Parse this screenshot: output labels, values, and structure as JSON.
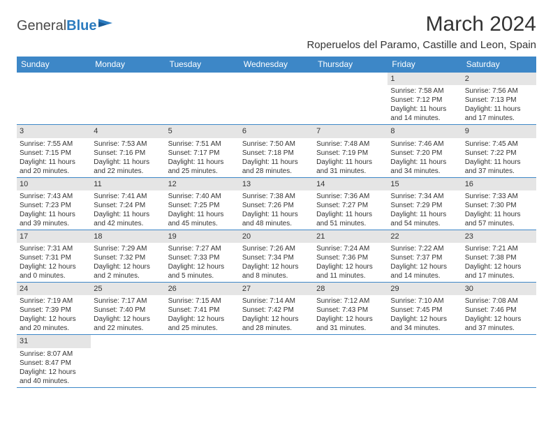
{
  "logo": {
    "text1": "General",
    "text2": "Blue"
  },
  "title": "March 2024",
  "location": "Roperuelos del Paramo, Castille and Leon, Spain",
  "colors": {
    "header_bg": "#3d87c7",
    "header_text": "#ffffff",
    "daynum_bg": "#e5e5e5",
    "border": "#3d87c7",
    "text": "#333333",
    "logo_blue": "#2b7bbf"
  },
  "typography": {
    "title_fontsize": 30,
    "location_fontsize": 15,
    "header_fontsize": 12,
    "cell_fontsize": 10,
    "daynum_fontsize": 11
  },
  "dayHeaders": [
    "Sunday",
    "Monday",
    "Tuesday",
    "Wednesday",
    "Thursday",
    "Friday",
    "Saturday"
  ],
  "weeks": [
    [
      {
        "n": "",
        "sr": "",
        "ss": "",
        "dl": ""
      },
      {
        "n": "",
        "sr": "",
        "ss": "",
        "dl": ""
      },
      {
        "n": "",
        "sr": "",
        "ss": "",
        "dl": ""
      },
      {
        "n": "",
        "sr": "",
        "ss": "",
        "dl": ""
      },
      {
        "n": "",
        "sr": "",
        "ss": "",
        "dl": ""
      },
      {
        "n": "1",
        "sr": "Sunrise: 7:58 AM",
        "ss": "Sunset: 7:12 PM",
        "dl": "Daylight: 11 hours and 14 minutes."
      },
      {
        "n": "2",
        "sr": "Sunrise: 7:56 AM",
        "ss": "Sunset: 7:13 PM",
        "dl": "Daylight: 11 hours and 17 minutes."
      }
    ],
    [
      {
        "n": "3",
        "sr": "Sunrise: 7:55 AM",
        "ss": "Sunset: 7:15 PM",
        "dl": "Daylight: 11 hours and 20 minutes."
      },
      {
        "n": "4",
        "sr": "Sunrise: 7:53 AM",
        "ss": "Sunset: 7:16 PM",
        "dl": "Daylight: 11 hours and 22 minutes."
      },
      {
        "n": "5",
        "sr": "Sunrise: 7:51 AM",
        "ss": "Sunset: 7:17 PM",
        "dl": "Daylight: 11 hours and 25 minutes."
      },
      {
        "n": "6",
        "sr": "Sunrise: 7:50 AM",
        "ss": "Sunset: 7:18 PM",
        "dl": "Daylight: 11 hours and 28 minutes."
      },
      {
        "n": "7",
        "sr": "Sunrise: 7:48 AM",
        "ss": "Sunset: 7:19 PM",
        "dl": "Daylight: 11 hours and 31 minutes."
      },
      {
        "n": "8",
        "sr": "Sunrise: 7:46 AM",
        "ss": "Sunset: 7:20 PM",
        "dl": "Daylight: 11 hours and 34 minutes."
      },
      {
        "n": "9",
        "sr": "Sunrise: 7:45 AM",
        "ss": "Sunset: 7:22 PM",
        "dl": "Daylight: 11 hours and 37 minutes."
      }
    ],
    [
      {
        "n": "10",
        "sr": "Sunrise: 7:43 AM",
        "ss": "Sunset: 7:23 PM",
        "dl": "Daylight: 11 hours and 39 minutes."
      },
      {
        "n": "11",
        "sr": "Sunrise: 7:41 AM",
        "ss": "Sunset: 7:24 PM",
        "dl": "Daylight: 11 hours and 42 minutes."
      },
      {
        "n": "12",
        "sr": "Sunrise: 7:40 AM",
        "ss": "Sunset: 7:25 PM",
        "dl": "Daylight: 11 hours and 45 minutes."
      },
      {
        "n": "13",
        "sr": "Sunrise: 7:38 AM",
        "ss": "Sunset: 7:26 PM",
        "dl": "Daylight: 11 hours and 48 minutes."
      },
      {
        "n": "14",
        "sr": "Sunrise: 7:36 AM",
        "ss": "Sunset: 7:27 PM",
        "dl": "Daylight: 11 hours and 51 minutes."
      },
      {
        "n": "15",
        "sr": "Sunrise: 7:34 AM",
        "ss": "Sunset: 7:29 PM",
        "dl": "Daylight: 11 hours and 54 minutes."
      },
      {
        "n": "16",
        "sr": "Sunrise: 7:33 AM",
        "ss": "Sunset: 7:30 PM",
        "dl": "Daylight: 11 hours and 57 minutes."
      }
    ],
    [
      {
        "n": "17",
        "sr": "Sunrise: 7:31 AM",
        "ss": "Sunset: 7:31 PM",
        "dl": "Daylight: 12 hours and 0 minutes."
      },
      {
        "n": "18",
        "sr": "Sunrise: 7:29 AM",
        "ss": "Sunset: 7:32 PM",
        "dl": "Daylight: 12 hours and 2 minutes."
      },
      {
        "n": "19",
        "sr": "Sunrise: 7:27 AM",
        "ss": "Sunset: 7:33 PM",
        "dl": "Daylight: 12 hours and 5 minutes."
      },
      {
        "n": "20",
        "sr": "Sunrise: 7:26 AM",
        "ss": "Sunset: 7:34 PM",
        "dl": "Daylight: 12 hours and 8 minutes."
      },
      {
        "n": "21",
        "sr": "Sunrise: 7:24 AM",
        "ss": "Sunset: 7:36 PM",
        "dl": "Daylight: 12 hours and 11 minutes."
      },
      {
        "n": "22",
        "sr": "Sunrise: 7:22 AM",
        "ss": "Sunset: 7:37 PM",
        "dl": "Daylight: 12 hours and 14 minutes."
      },
      {
        "n": "23",
        "sr": "Sunrise: 7:21 AM",
        "ss": "Sunset: 7:38 PM",
        "dl": "Daylight: 12 hours and 17 minutes."
      }
    ],
    [
      {
        "n": "24",
        "sr": "Sunrise: 7:19 AM",
        "ss": "Sunset: 7:39 PM",
        "dl": "Daylight: 12 hours and 20 minutes."
      },
      {
        "n": "25",
        "sr": "Sunrise: 7:17 AM",
        "ss": "Sunset: 7:40 PM",
        "dl": "Daylight: 12 hours and 22 minutes."
      },
      {
        "n": "26",
        "sr": "Sunrise: 7:15 AM",
        "ss": "Sunset: 7:41 PM",
        "dl": "Daylight: 12 hours and 25 minutes."
      },
      {
        "n": "27",
        "sr": "Sunrise: 7:14 AM",
        "ss": "Sunset: 7:42 PM",
        "dl": "Daylight: 12 hours and 28 minutes."
      },
      {
        "n": "28",
        "sr": "Sunrise: 7:12 AM",
        "ss": "Sunset: 7:43 PM",
        "dl": "Daylight: 12 hours and 31 minutes."
      },
      {
        "n": "29",
        "sr": "Sunrise: 7:10 AM",
        "ss": "Sunset: 7:45 PM",
        "dl": "Daylight: 12 hours and 34 minutes."
      },
      {
        "n": "30",
        "sr": "Sunrise: 7:08 AM",
        "ss": "Sunset: 7:46 PM",
        "dl": "Daylight: 12 hours and 37 minutes."
      }
    ],
    [
      {
        "n": "31",
        "sr": "Sunrise: 8:07 AM",
        "ss": "Sunset: 8:47 PM",
        "dl": "Daylight: 12 hours and 40 minutes."
      },
      {
        "n": "",
        "sr": "",
        "ss": "",
        "dl": ""
      },
      {
        "n": "",
        "sr": "",
        "ss": "",
        "dl": ""
      },
      {
        "n": "",
        "sr": "",
        "ss": "",
        "dl": ""
      },
      {
        "n": "",
        "sr": "",
        "ss": "",
        "dl": ""
      },
      {
        "n": "",
        "sr": "",
        "ss": "",
        "dl": ""
      },
      {
        "n": "",
        "sr": "",
        "ss": "",
        "dl": ""
      }
    ]
  ]
}
